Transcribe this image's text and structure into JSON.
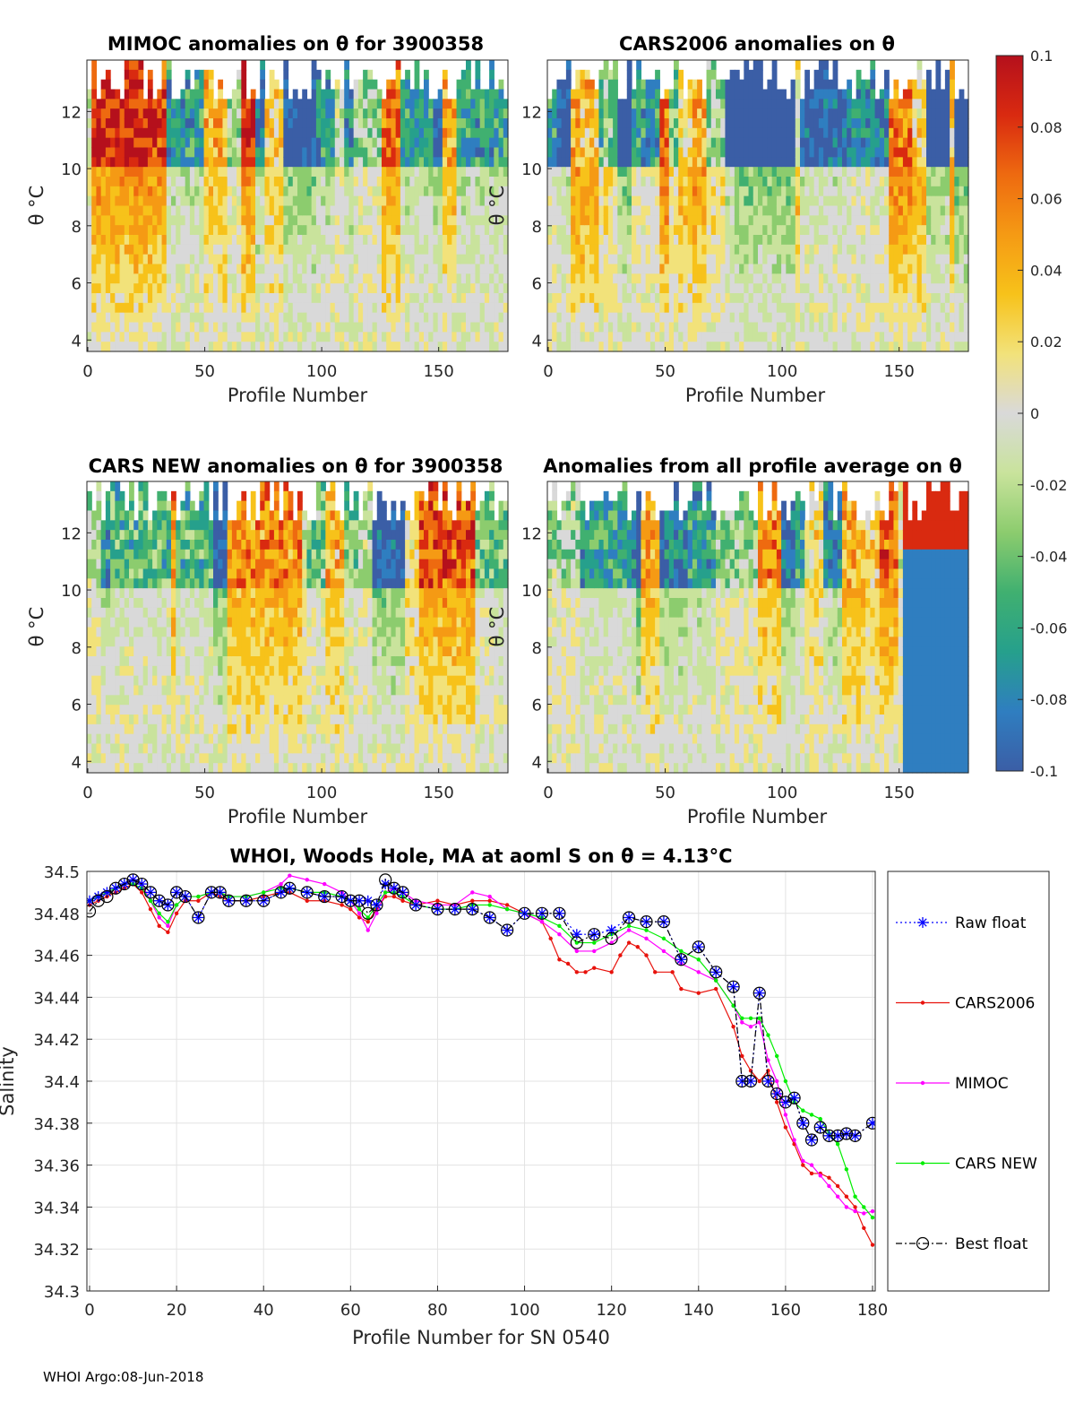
{
  "colorbar": {
    "ticks": [
      "0.1",
      "0.08",
      "0.06",
      "0.04",
      "0.02",
      "0",
      "-0.02",
      "-0.04",
      "-0.06",
      "-0.08",
      "-0.1"
    ],
    "colors": [
      "#3b5ea6",
      "#2f7ec0",
      "#26a08c",
      "#40b070",
      "#8ccc6e",
      "#c9e39c",
      "#d9d9d9",
      "#f2e27a",
      "#f7c21a",
      "#f59a14",
      "#ee6a10",
      "#d92a10",
      "#b5101c"
    ]
  },
  "heatmaps": [
    {
      "title": "MIMOC anomalies on θ  for 3900358",
      "xlabel": "Profile Number",
      "ylabel": "θ °C",
      "xticks": [
        "0",
        "50",
        "100",
        "150"
      ],
      "yticks": [
        "12",
        "10",
        "8",
        "6",
        "4"
      ],
      "seed": 3
    },
    {
      "title": "CARS2006 anomalies on θ",
      "xlabel": "Profile Number",
      "ylabel": "θ °C",
      "xticks": [
        "0",
        "50",
        "100",
        "150"
      ],
      "yticks": [
        "12",
        "10",
        "8",
        "6",
        "4"
      ],
      "seed": 7
    },
    {
      "title": "CARS NEW anomalies on θ for 3900358",
      "xlabel": "Profile Number",
      "ylabel": "θ °C",
      "xticks": [
        "0",
        "50",
        "100",
        "150"
      ],
      "yticks": [
        "12",
        "10",
        "8",
        "6",
        "4"
      ],
      "seed": 11
    },
    {
      "title": "Anomalies from all profile average on θ",
      "xlabel": "Profile Number",
      "ylabel": "θ °C",
      "xticks": [
        "0",
        "50",
        "100",
        "150"
      ],
      "yticks": [
        "12",
        "10",
        "8",
        "6",
        "4"
      ],
      "seed": 19
    }
  ],
  "chart_data": {
    "type": "line",
    "title": "WHOI, Woods Hole, MA at aoml S on θ = 4.13°C",
    "xlabel": "Profile Number for SN 0540",
    "ylabel": "Salinity",
    "xlim": [
      0,
      180
    ],
    "ylim": [
      34.3,
      34.5
    ],
    "grid": true,
    "xticks": [
      "0",
      "20",
      "40",
      "60",
      "80",
      "100",
      "120",
      "140",
      "160",
      "180"
    ],
    "yticks": [
      "34.5",
      "34.48",
      "34.46",
      "34.44",
      "34.42",
      "34.4",
      "34.38",
      "34.36",
      "34.34",
      "34.32",
      "34.3"
    ],
    "legend_placement": "right",
    "series": [
      {
        "name": "Raw float",
        "color": "#0000ff",
        "marker": "star",
        "dash": "dotted",
        "x": [
          0,
          2,
          4,
          6,
          8,
          10,
          12,
          14,
          16,
          18,
          20,
          22,
          25,
          28,
          30,
          32,
          36,
          40,
          44,
          46,
          50,
          54,
          58,
          60,
          62,
          64,
          66,
          68,
          70,
          72,
          75,
          80,
          84,
          88,
          92,
          96,
          100,
          104,
          108,
          112,
          116,
          120,
          124,
          128,
          132,
          136,
          140,
          144,
          148,
          150,
          152,
          154,
          156,
          158,
          160,
          162,
          164,
          166,
          168,
          170,
          172,
          174,
          176,
          180
        ],
        "y": [
          34.486,
          34.488,
          34.49,
          34.492,
          34.494,
          34.496,
          34.494,
          34.49,
          34.486,
          34.484,
          34.49,
          34.488,
          34.478,
          34.49,
          34.49,
          34.486,
          34.486,
          34.486,
          34.49,
          34.492,
          34.49,
          34.488,
          34.488,
          34.486,
          34.486,
          34.486,
          34.484,
          34.494,
          34.492,
          34.49,
          34.484,
          34.482,
          34.482,
          34.482,
          34.478,
          34.472,
          34.48,
          34.48,
          34.48,
          34.47,
          34.47,
          34.472,
          34.478,
          34.476,
          34.476,
          34.458,
          34.464,
          34.452,
          34.445,
          34.4,
          34.4,
          34.442,
          34.4,
          34.394,
          34.39,
          34.392,
          34.38,
          34.372,
          34.378,
          34.374,
          34.374,
          34.375,
          34.374,
          34.38
        ]
      },
      {
        "name": "CARS2006",
        "color": "#e8120c",
        "marker": "dot",
        "dash": "solid",
        "x": [
          0,
          2,
          4,
          6,
          8,
          10,
          12,
          14,
          16,
          18,
          20,
          22,
          25,
          28,
          30,
          32,
          36,
          40,
          44,
          46,
          50,
          54,
          58,
          60,
          62,
          64,
          66,
          68,
          70,
          72,
          75,
          80,
          84,
          88,
          92,
          96,
          100,
          104,
          106,
          108,
          110,
          112,
          114,
          116,
          120,
          122,
          124,
          126,
          128,
          130,
          134,
          136,
          140,
          144,
          148,
          150,
          152,
          154,
          156,
          158,
          160,
          162,
          164,
          166,
          168,
          170,
          172,
          174,
          176,
          178,
          180
        ],
        "y": [
          34.484,
          34.486,
          34.488,
          34.49,
          34.492,
          34.494,
          34.49,
          34.482,
          34.474,
          34.471,
          34.48,
          34.486,
          34.486,
          34.49,
          34.488,
          34.486,
          34.486,
          34.488,
          34.49,
          34.49,
          34.486,
          34.486,
          34.484,
          34.482,
          34.478,
          34.476,
          34.482,
          34.488,
          34.488,
          34.486,
          34.484,
          34.486,
          34.484,
          34.486,
          34.486,
          34.484,
          34.48,
          34.476,
          34.468,
          34.458,
          34.456,
          34.452,
          34.452,
          34.454,
          34.452,
          34.46,
          34.466,
          34.464,
          34.46,
          34.452,
          34.452,
          34.444,
          34.442,
          34.444,
          34.426,
          34.412,
          34.405,
          34.4,
          34.405,
          34.39,
          34.378,
          34.37,
          34.36,
          34.356,
          34.356,
          34.354,
          34.35,
          34.345,
          34.34,
          34.33,
          34.322
        ]
      },
      {
        "name": "MIMOC",
        "color": "#ff00ff",
        "marker": "dot",
        "dash": "solid",
        "x": [
          0,
          2,
          4,
          6,
          8,
          10,
          12,
          14,
          16,
          18,
          20,
          22,
          25,
          28,
          30,
          32,
          36,
          40,
          44,
          46,
          50,
          54,
          58,
          60,
          62,
          64,
          66,
          68,
          70,
          72,
          75,
          80,
          84,
          88,
          92,
          96,
          100,
          104,
          108,
          112,
          116,
          120,
          124,
          128,
          132,
          136,
          140,
          144,
          148,
          150,
          152,
          154,
          156,
          158,
          160,
          162,
          164,
          166,
          168,
          170,
          172,
          174,
          176,
          178,
          180
        ],
        "y": [
          34.486,
          34.488,
          34.49,
          34.492,
          34.494,
          34.496,
          34.494,
          34.486,
          34.478,
          34.474,
          34.484,
          34.488,
          34.488,
          34.49,
          34.49,
          34.488,
          34.488,
          34.49,
          34.494,
          34.498,
          34.496,
          34.494,
          34.49,
          34.486,
          34.48,
          34.472,
          34.48,
          34.49,
          34.492,
          34.49,
          34.486,
          34.484,
          34.484,
          34.49,
          34.488,
          34.482,
          34.48,
          34.476,
          34.47,
          34.462,
          34.462,
          34.466,
          34.472,
          34.468,
          34.462,
          34.456,
          34.452,
          34.448,
          34.436,
          34.428,
          34.426,
          34.428,
          34.41,
          34.4,
          34.384,
          34.372,
          34.362,
          34.36,
          34.355,
          34.35,
          34.345,
          34.34,
          34.338,
          34.337,
          34.338
        ]
      },
      {
        "name": "CARS NEW",
        "color": "#00ee00",
        "marker": "dot",
        "dash": "solid",
        "x": [
          0,
          2,
          4,
          6,
          8,
          10,
          12,
          14,
          16,
          18,
          20,
          22,
          25,
          28,
          30,
          32,
          36,
          40,
          44,
          46,
          50,
          54,
          58,
          60,
          62,
          64,
          66,
          68,
          70,
          72,
          75,
          80,
          84,
          88,
          92,
          96,
          100,
          104,
          108,
          112,
          116,
          120,
          124,
          128,
          132,
          136,
          140,
          144,
          148,
          150,
          152,
          154,
          156,
          158,
          160,
          162,
          164,
          166,
          168,
          170,
          172,
          174,
          176,
          178,
          180
        ],
        "y": [
          34.486,
          34.488,
          34.49,
          34.492,
          34.494,
          34.494,
          34.492,
          34.486,
          34.48,
          34.476,
          34.484,
          34.488,
          34.488,
          34.49,
          34.49,
          34.488,
          34.488,
          34.49,
          34.492,
          34.492,
          34.49,
          34.49,
          34.488,
          34.486,
          34.482,
          34.478,
          34.484,
          34.49,
          34.49,
          34.488,
          34.484,
          34.482,
          34.482,
          34.484,
          34.484,
          34.482,
          34.48,
          34.478,
          34.474,
          34.466,
          34.466,
          34.47,
          34.474,
          34.472,
          34.468,
          34.462,
          34.458,
          34.448,
          34.436,
          34.43,
          34.43,
          34.43,
          34.422,
          34.412,
          34.4,
          34.39,
          34.386,
          34.384,
          34.382,
          34.375,
          34.37,
          34.358,
          34.345,
          34.34,
          34.335
        ]
      },
      {
        "name": "Best float",
        "color": "#000000",
        "marker": "circle",
        "dash": "dashdot",
        "x": [
          0,
          2,
          4,
          6,
          8,
          10,
          12,
          14,
          16,
          18,
          20,
          22,
          25,
          28,
          30,
          32,
          36,
          40,
          44,
          46,
          50,
          54,
          58,
          60,
          62,
          64,
          66,
          68,
          70,
          72,
          75,
          80,
          84,
          88,
          92,
          96,
          100,
          104,
          108,
          112,
          116,
          120,
          124,
          128,
          132,
          136,
          140,
          144,
          148,
          150,
          152,
          154,
          156,
          158,
          160,
          162,
          164,
          166,
          168,
          170,
          172,
          174,
          176,
          180
        ],
        "y": [
          34.481,
          34.486,
          34.488,
          34.492,
          34.494,
          34.496,
          34.494,
          34.49,
          34.486,
          34.484,
          34.49,
          34.488,
          34.478,
          34.49,
          34.49,
          34.486,
          34.486,
          34.486,
          34.49,
          34.492,
          34.49,
          34.488,
          34.488,
          34.486,
          34.486,
          34.48,
          34.484,
          34.496,
          34.492,
          34.49,
          34.484,
          34.482,
          34.482,
          34.482,
          34.478,
          34.472,
          34.48,
          34.48,
          34.48,
          34.466,
          34.47,
          34.468,
          34.478,
          34.476,
          34.476,
          34.458,
          34.464,
          34.452,
          34.445,
          34.4,
          34.4,
          34.442,
          34.4,
          34.394,
          34.39,
          34.392,
          34.38,
          34.372,
          34.378,
          34.374,
          34.374,
          34.375,
          34.374,
          34.38
        ]
      }
    ]
  },
  "footer": "WHOI Argo:08-Jun-2018"
}
